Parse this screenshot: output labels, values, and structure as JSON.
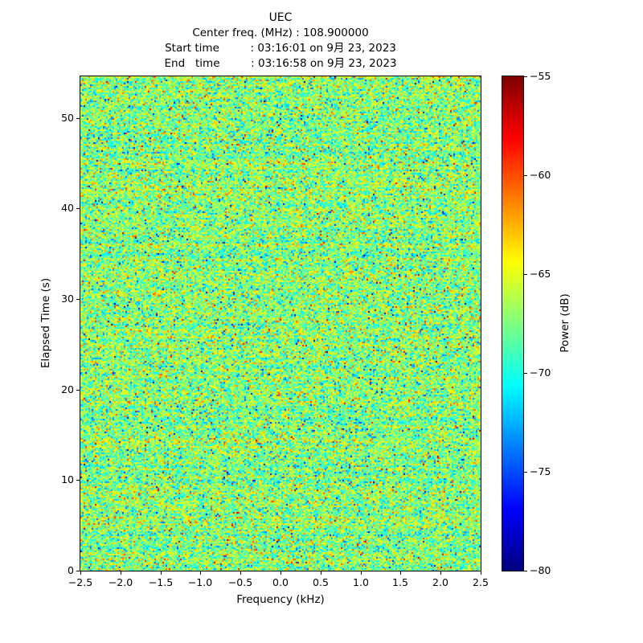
{
  "chart_data": {
    "type": "heatmap",
    "title": "UEC",
    "subtitle_lines": [
      "Center freq. (MHz) : 108.900000",
      "Start time         : 03:16:01 on 9月 23, 2023",
      "End   time         : 03:16:58 on 9月 23, 2023"
    ],
    "center_freq_mhz": "108.900000",
    "start_time": "03:16:01 on 9月 23, 2023",
    "end_time": "03:16:58 on 9月 23, 2023",
    "xlabel": "Frequency (kHz)",
    "ylabel": "Elapsed Time (s)",
    "colorbar_label": "Power (dB)",
    "xlim": [
      -2.5,
      2.5
    ],
    "ylim": [
      0,
      54.6
    ],
    "clim": [
      -80,
      -55
    ],
    "colormap": "jet",
    "grid": false,
    "x_ticks": [
      {
        "value": -2.5,
        "label": "−2.5"
      },
      {
        "value": -2.0,
        "label": "−2.0"
      },
      {
        "value": -1.5,
        "label": "−1.5"
      },
      {
        "value": -1.0,
        "label": "−1.0"
      },
      {
        "value": -0.5,
        "label": "−0.5"
      },
      {
        "value": 0.0,
        "label": "0.0"
      },
      {
        "value": 0.5,
        "label": "0.5"
      },
      {
        "value": 1.0,
        "label": "1.0"
      },
      {
        "value": 1.5,
        "label": "1.5"
      },
      {
        "value": 2.0,
        "label": "2.0"
      },
      {
        "value": 2.5,
        "label": "2.5"
      }
    ],
    "y_ticks": [
      {
        "value": 0,
        "label": "0"
      },
      {
        "value": 10,
        "label": "10"
      },
      {
        "value": 20,
        "label": "20"
      },
      {
        "value": 30,
        "label": "30"
      },
      {
        "value": 40,
        "label": "40"
      },
      {
        "value": 50,
        "label": "50"
      }
    ],
    "colorbar_ticks": [
      {
        "value": -55,
        "label": "−55"
      },
      {
        "value": -60,
        "label": "−60"
      },
      {
        "value": -65,
        "label": "−65"
      },
      {
        "value": -70,
        "label": "−70"
      },
      {
        "value": -75,
        "label": "−75"
      },
      {
        "value": -80,
        "label": "−80"
      }
    ],
    "noise_model": {
      "description": "broadband noise spectrogram, no visible carrier",
      "mean_db": -67.3,
      "std_db": 2.7,
      "row_wobble_db": 0.6,
      "outlier_fraction": 0.018,
      "seed": 7,
      "freq_bins": 249,
      "time_bins": 308
    }
  }
}
